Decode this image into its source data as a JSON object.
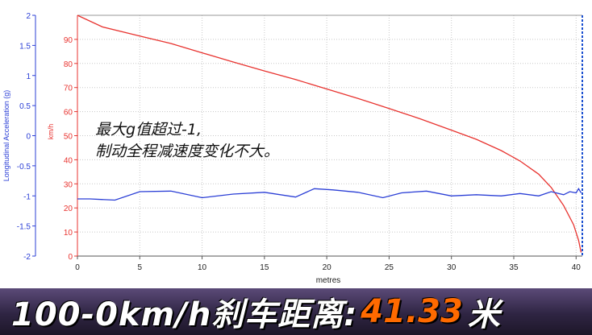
{
  "chart_data": {
    "type": "line",
    "xlabel": "metres",
    "y_left_label": "Longitudinal Acceleration (g)",
    "y_inner_label": "km/h",
    "x_range": [
      0,
      40.5
    ],
    "x_ticks": [
      0,
      5,
      10,
      15,
      20,
      25,
      30,
      35,
      40
    ],
    "accel_range": [
      -2,
      2
    ],
    "accel_ticks": [
      "2",
      "1.5",
      "1",
      "0.5",
      "0",
      "-0.5",
      "-1",
      "-1.5",
      "-2"
    ],
    "speed_range": [
      0,
      100
    ],
    "speed_ticks": [
      0,
      10,
      20,
      30,
      40,
      50,
      60,
      70,
      80,
      90
    ],
    "grid": true,
    "series": [
      {
        "color": "#e8332f",
        "axis": "speed",
        "x": [
          0,
          2,
          5,
          7.5,
          10,
          12.5,
          15,
          17.5,
          20,
          22.5,
          25,
          27.5,
          30,
          32,
          34,
          35.5,
          37,
          38,
          39,
          39.8,
          40.2,
          40.4
        ],
        "y": [
          100,
          95.2,
          91.4,
          88.3,
          84.4,
          80.6,
          76.9,
          73.3,
          69.4,
          65.5,
          61.3,
          57.0,
          52.3,
          48.5,
          43.8,
          39.5,
          34.0,
          28.5,
          21.0,
          13.0,
          6.5,
          1.5
        ]
      },
      {
        "color": "#2b3fd6",
        "axis": "accel",
        "x": [
          0,
          1,
          3,
          5,
          7.5,
          10,
          12.5,
          15,
          17.5,
          19,
          20.5,
          22.5,
          24.5,
          26,
          28,
          30,
          32,
          34,
          35.5,
          37,
          38,
          39,
          39.5,
          40,
          40.2,
          40.4
        ],
        "y": [
          -1.05,
          -1.05,
          -1.07,
          -0.93,
          -0.92,
          -1.03,
          -0.97,
          -0.94,
          -1.02,
          -0.88,
          -0.9,
          -0.94,
          -1.03,
          -0.95,
          -0.92,
          -1.0,
          -0.98,
          -1.0,
          -0.96,
          -1.0,
          -0.93,
          -0.98,
          -0.93,
          -0.95,
          -0.88,
          -0.95
        ]
      }
    ]
  },
  "annotation": {
    "line1": "最大g值超过-1,",
    "line2": "制动全程减速度变化不大。"
  },
  "banner": {
    "prefix": "100-0km/h刹车距离:",
    "value": "41.33",
    "unit": "米"
  },
  "colors": {
    "accel_axis": "#2b3fd6",
    "speed_axis": "#e8332f",
    "grid": "#c8c8c8"
  }
}
